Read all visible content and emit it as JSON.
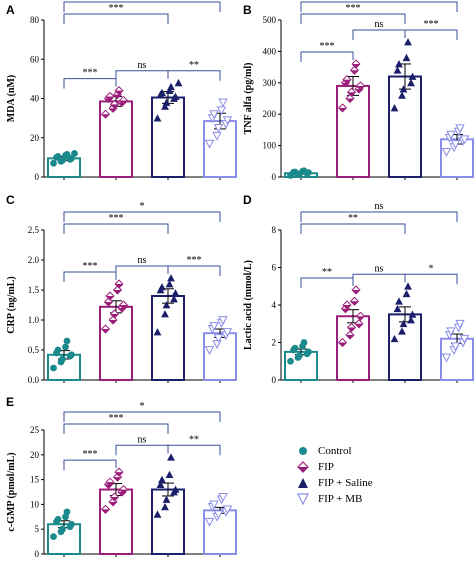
{
  "chart_data": [
    {
      "type": "bar",
      "panel": "A",
      "ylabel": "MDA (nM)",
      "ylim": [
        0,
        80
      ],
      "yticks": [
        0,
        20,
        40,
        60,
        80
      ],
      "categories": [
        "Control",
        "FIP",
        "FIP + Saline",
        "FIP + MB"
      ],
      "values": [
        9.5,
        38.5,
        40.5,
        28.5
      ],
      "errors": [
        1.0,
        2.5,
        3.0,
        4.0
      ],
      "points": [
        [
          7,
          8,
          8.5,
          9,
          9.5,
          10,
          10.5,
          11,
          11.5,
          12
        ],
        [
          32,
          35,
          37,
          38,
          39,
          40,
          41,
          42,
          44
        ],
        [
          30,
          36,
          38,
          40,
          41,
          42,
          43,
          44,
          46,
          48
        ],
        [
          17,
          21,
          25,
          27,
          29,
          30,
          32,
          34,
          38
        ]
      ],
      "significance": [
        {
          "from": 0,
          "to": 1,
          "label": "***"
        },
        {
          "from": 1,
          "to": 2,
          "label": "ns"
        },
        {
          "from": 2,
          "to": 3,
          "label": "**"
        },
        {
          "from": 0,
          "to": 2,
          "label": "***"
        },
        {
          "from": 0,
          "to": 3,
          "label": "***"
        }
      ]
    },
    {
      "type": "bar",
      "panel": "B",
      "ylabel": "TNF alfa (pg/ml)",
      "ylim": [
        0,
        500
      ],
      "yticks": [
        0,
        100,
        200,
        300,
        400,
        500
      ],
      "categories": [
        "Control",
        "FIP",
        "FIP + Saline",
        "FIP + MB"
      ],
      "values": [
        12,
        290,
        320,
        120
      ],
      "errors": [
        3,
        30,
        40,
        15
      ],
      "points": [
        [
          5,
          8,
          10,
          12,
          14,
          15,
          16,
          18,
          20
        ],
        [
          220,
          250,
          270,
          280,
          290,
          300,
          310,
          340,
          360
        ],
        [
          220,
          260,
          280,
          300,
          320,
          340,
          360,
          380,
          430
        ],
        [
          80,
          95,
          105,
          115,
          120,
          125,
          135,
          145,
          155
        ]
      ],
      "significance": [
        {
          "from": 0,
          "to": 1,
          "label": "***"
        },
        {
          "from": 1,
          "to": 2,
          "label": "ns"
        },
        {
          "from": 2,
          "to": 3,
          "label": "***"
        },
        {
          "from": 0,
          "to": 2,
          "label": "***"
        },
        {
          "from": 0,
          "to": 3,
          "label": "***"
        }
      ]
    },
    {
      "type": "bar",
      "panel": "C",
      "ylabel": "CRP (ng/mL)",
      "ylim": [
        0,
        2.5
      ],
      "yticks": [
        0,
        0.5,
        1.0,
        1.5,
        2.0,
        2.5
      ],
      "tickFormat": "0.0",
      "categories": [
        "Control",
        "FIP",
        "FIP + Saline",
        "FIP + MB"
      ],
      "values": [
        0.42,
        1.22,
        1.4,
        0.78
      ],
      "errors": [
        0.07,
        0.1,
        0.12,
        0.07
      ],
      "points": [
        [
          0.2,
          0.3,
          0.35,
          0.4,
          0.42,
          0.45,
          0.5,
          0.55,
          0.65
        ],
        [
          0.85,
          1.0,
          1.1,
          1.2,
          1.25,
          1.3,
          1.4,
          1.5,
          1.6
        ],
        [
          0.8,
          1.1,
          1.25,
          1.35,
          1.45,
          1.5,
          1.55,
          1.6,
          1.7
        ],
        [
          0.5,
          0.6,
          0.7,
          0.75,
          0.8,
          0.85,
          0.9,
          0.95,
          1.0
        ]
      ],
      "significance": [
        {
          "from": 0,
          "to": 1,
          "label": "***"
        },
        {
          "from": 1,
          "to": 2,
          "label": "ns"
        },
        {
          "from": 2,
          "to": 3,
          "label": "***"
        },
        {
          "from": 0,
          "to": 2,
          "label": "***"
        },
        {
          "from": 0,
          "to": 3,
          "label": "*"
        }
      ]
    },
    {
      "type": "bar",
      "panel": "D",
      "ylabel": "Lactic acid (mmol/L)",
      "ylim": [
        0,
        8
      ],
      "yticks": [
        0,
        2,
        4,
        6,
        8
      ],
      "categories": [
        "Control",
        "FIP",
        "FIP + Saline",
        "FIP + MB"
      ],
      "values": [
        1.5,
        3.4,
        3.5,
        2.2
      ],
      "errors": [
        0.15,
        0.35,
        0.4,
        0.25
      ],
      "points": [
        [
          1.0,
          1.2,
          1.3,
          1.4,
          1.5,
          1.6,
          1.7,
          1.8,
          2.0
        ],
        [
          2.0,
          2.4,
          2.8,
          3.0,
          3.4,
          3.8,
          4.0,
          4.2,
          4.8
        ],
        [
          2.2,
          2.6,
          3.0,
          3.2,
          3.5,
          3.8,
          4.2,
          4.6,
          5.0
        ],
        [
          1.2,
          1.6,
          1.8,
          2.0,
          2.2,
          2.4,
          2.6,
          2.8,
          3.0
        ]
      ],
      "significance": [
        {
          "from": 0,
          "to": 1,
          "label": "**"
        },
        {
          "from": 1,
          "to": 2,
          "label": "ns"
        },
        {
          "from": 2,
          "to": 3,
          "label": "*"
        },
        {
          "from": 0,
          "to": 2,
          "label": "**"
        },
        {
          "from": 0,
          "to": 3,
          "label": "ns"
        }
      ]
    },
    {
      "type": "bar",
      "panel": "E",
      "ylabel": "c-GMP (pmol/mL)",
      "ylim": [
        0,
        25
      ],
      "yticks": [
        0,
        5,
        10,
        15,
        20,
        25
      ],
      "categories": [
        "Control",
        "FIP",
        "FIP + Saline",
        "FIP + MB"
      ],
      "values": [
        6,
        13,
        13,
        8.8
      ],
      "errors": [
        0.7,
        1.2,
        1.3,
        0.6
      ],
      "points": [
        [
          3.5,
          4.5,
          5,
          5.5,
          6,
          6.5,
          7,
          7.5,
          8.5
        ],
        [
          9,
          10.5,
          11.5,
          12.5,
          13,
          14,
          14.5,
          15.5,
          16.5
        ],
        [
          8,
          9.5,
          11,
          12.5,
          13,
          14,
          15,
          16,
          19.5
        ],
        [
          6.5,
          7.5,
          8,
          8.5,
          9,
          9.5,
          10,
          11,
          11.5
        ]
      ],
      "significance": [
        {
          "from": 0,
          "to": 1,
          "label": "***"
        },
        {
          "from": 1,
          "to": 2,
          "label": "ns"
        },
        {
          "from": 2,
          "to": 3,
          "label": "**"
        },
        {
          "from": 0,
          "to": 2,
          "label": "***"
        },
        {
          "from": 0,
          "to": 3,
          "label": "*"
        }
      ]
    }
  ],
  "legend": {
    "items": [
      {
        "label": "Control",
        "marker": "circle",
        "color": "#1a8a8c"
      },
      {
        "label": "FIP",
        "marker": "diamond",
        "color": "#9b1f7a"
      },
      {
        "label": "FIP + Saline",
        "marker": "triangle-up",
        "color": "#1b1f6b"
      },
      {
        "label": "FIP + MB",
        "marker": "triangle-down",
        "color": "#8a8ee8"
      }
    ]
  },
  "colors": {
    "control": "#1a8a8c",
    "fip": "#9b1f7a",
    "saline": "#1b1f6b",
    "mb": "#8a8ee8",
    "sig_line": "#3a4f9c"
  }
}
